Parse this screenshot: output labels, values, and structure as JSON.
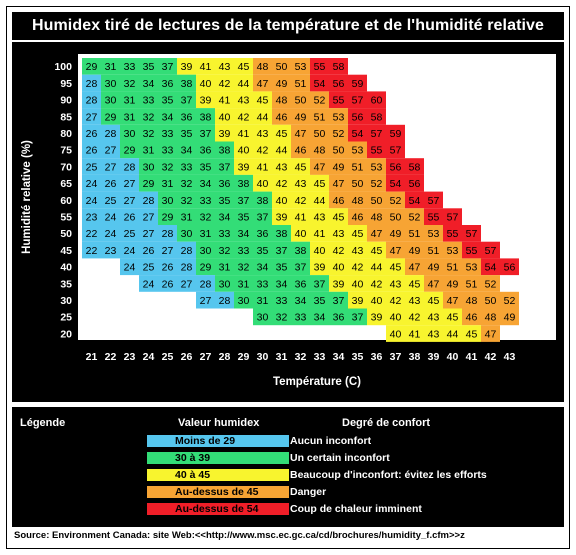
{
  "title": "Humidex tiré de lectures de la température et de l'humidité relative",
  "chart_data": {
    "type": "heatmap",
    "title": "Humidex tiré de lectures de la température et de l'humidité relative",
    "xlabel": "Température (C)",
    "ylabel": "Humidité relative (%)",
    "x": [
      21,
      22,
      23,
      24,
      25,
      26,
      27,
      28,
      29,
      30,
      31,
      32,
      33,
      34,
      35,
      36,
      37,
      38,
      39,
      40,
      41,
      42,
      43
    ],
    "y": [
      100,
      95,
      90,
      85,
      80,
      75,
      70,
      65,
      60,
      55,
      50,
      45,
      40,
      35,
      30,
      25,
      20
    ],
    "rows": [
      {
        "rh": 100,
        "start": 21,
        "values": [
          29,
          31,
          33,
          35,
          37,
          39,
          41,
          43,
          45,
          48,
          50,
          53,
          55,
          58
        ]
      },
      {
        "rh": 95,
        "start": 21,
        "values": [
          28,
          30,
          32,
          34,
          36,
          38,
          40,
          42,
          44,
          47,
          49,
          51,
          54,
          56,
          59
        ]
      },
      {
        "rh": 90,
        "start": 21,
        "values": [
          28,
          30,
          31,
          33,
          35,
          37,
          39,
          41,
          43,
          45,
          48,
          50,
          52,
          55,
          57,
          60
        ]
      },
      {
        "rh": 85,
        "start": 21,
        "values": [
          27,
          29,
          31,
          32,
          34,
          36,
          38,
          40,
          42,
          44,
          46,
          49,
          51,
          53,
          56,
          58
        ]
      },
      {
        "rh": 80,
        "start": 21,
        "values": [
          26,
          28,
          30,
          32,
          33,
          35,
          37,
          39,
          41,
          43,
          45,
          47,
          50,
          52,
          54,
          57,
          59
        ]
      },
      {
        "rh": 75,
        "start": 21,
        "values": [
          26,
          27,
          29,
          31,
          33,
          34,
          36,
          38,
          40,
          42,
          44,
          46,
          48,
          50,
          53,
          55,
          57
        ]
      },
      {
        "rh": 70,
        "start": 21,
        "values": [
          25,
          27,
          28,
          30,
          32,
          33,
          35,
          37,
          39,
          41,
          43,
          45,
          47,
          49,
          51,
          53,
          56,
          58
        ]
      },
      {
        "rh": 65,
        "start": 21,
        "values": [
          24,
          26,
          27,
          29,
          31,
          32,
          34,
          36,
          38,
          40,
          42,
          43,
          45,
          47,
          50,
          52,
          54,
          56
        ]
      },
      {
        "rh": 60,
        "start": 21,
        "values": [
          24,
          25,
          27,
          28,
          30,
          32,
          33,
          35,
          37,
          38,
          40,
          42,
          44,
          46,
          48,
          50,
          52,
          54,
          57
        ]
      },
      {
        "rh": 55,
        "start": 21,
        "values": [
          23,
          24,
          26,
          27,
          29,
          31,
          32,
          34,
          35,
          37,
          39,
          41,
          43,
          45,
          46,
          48,
          50,
          52,
          55,
          57
        ]
      },
      {
        "rh": 50,
        "start": 21,
        "values": [
          22,
          24,
          25,
          27,
          28,
          30,
          31,
          33,
          34,
          36,
          38,
          40,
          41,
          43,
          45,
          47,
          49,
          51,
          53,
          55,
          57
        ]
      },
      {
        "rh": 45,
        "start": 21,
        "values": [
          22,
          23,
          24,
          26,
          27,
          28,
          30,
          32,
          33,
          35,
          37,
          38,
          40,
          42,
          43,
          45,
          47,
          49,
          51,
          53,
          55,
          57
        ]
      },
      {
        "rh": 40,
        "start": 23,
        "values": [
          24,
          25,
          26,
          28,
          29,
          31,
          32,
          34,
          35,
          37,
          39,
          40,
          42,
          44,
          45,
          47,
          49,
          51,
          53,
          54,
          56
        ]
      },
      {
        "rh": 35,
        "start": 24,
        "values": [
          24,
          26,
          27,
          28,
          30,
          31,
          33,
          34,
          36,
          37,
          39,
          40,
          42,
          43,
          45,
          47,
          49,
          51,
          52
        ]
      },
      {
        "rh": 30,
        "start": 27,
        "values": [
          27,
          28,
          30,
          31,
          33,
          34,
          35,
          37,
          39,
          40,
          42,
          43,
          45,
          47,
          48,
          50,
          52
        ]
      },
      {
        "rh": 25,
        "start": 30,
        "values": [
          30,
          32,
          33,
          34,
          36,
          37,
          39,
          40,
          42,
          43,
          45,
          46,
          48,
          49
        ]
      },
      {
        "rh": 20,
        "start": 37,
        "values": [
          40,
          41,
          43,
          44,
          45,
          47
        ]
      }
    ],
    "color_bins": [
      {
        "label": "Moins de 29",
        "max": 28,
        "color": "#56c6ee"
      },
      {
        "label": "30 à 39",
        "min": 29,
        "max": 38,
        "color": "#33dd77"
      },
      {
        "label": "40 à 45",
        "min": 39,
        "max": 45,
        "color": "#f8f42e"
      },
      {
        "label": "Au-dessus de 45",
        "min": 46,
        "max": 53,
        "color": "#f7a434"
      },
      {
        "label": "Au-dessus de 54",
        "min": 54,
        "color": "#f01e28"
      }
    ]
  },
  "legend": {
    "title": "Légende",
    "value_header": "Valeur humidex",
    "comfort_header": "Degré de confort",
    "items": [
      {
        "range": "Moins de 29",
        "comfort": "Aucun inconfort",
        "color": "#56c6ee"
      },
      {
        "range": "30 à 39",
        "comfort": "Un certain inconfort",
        "color": "#33dd77"
      },
      {
        "range": "40 à 45",
        "comfort": "Beaucoup d'inconfort: évitez les efforts",
        "color": "#f8f42e"
      },
      {
        "range": "Au-dessus de 45",
        "comfort": "Danger",
        "color": "#f7a434"
      },
      {
        "range": "Au-dessus de 54",
        "comfort": "Coup de chaleur imminent",
        "color": "#f01e28"
      }
    ]
  },
  "source": "Source: Environment Canada: site Web:<<http://www.msc.ec.gc.ca/cd/brochures/humidity_f.cfm>>z"
}
